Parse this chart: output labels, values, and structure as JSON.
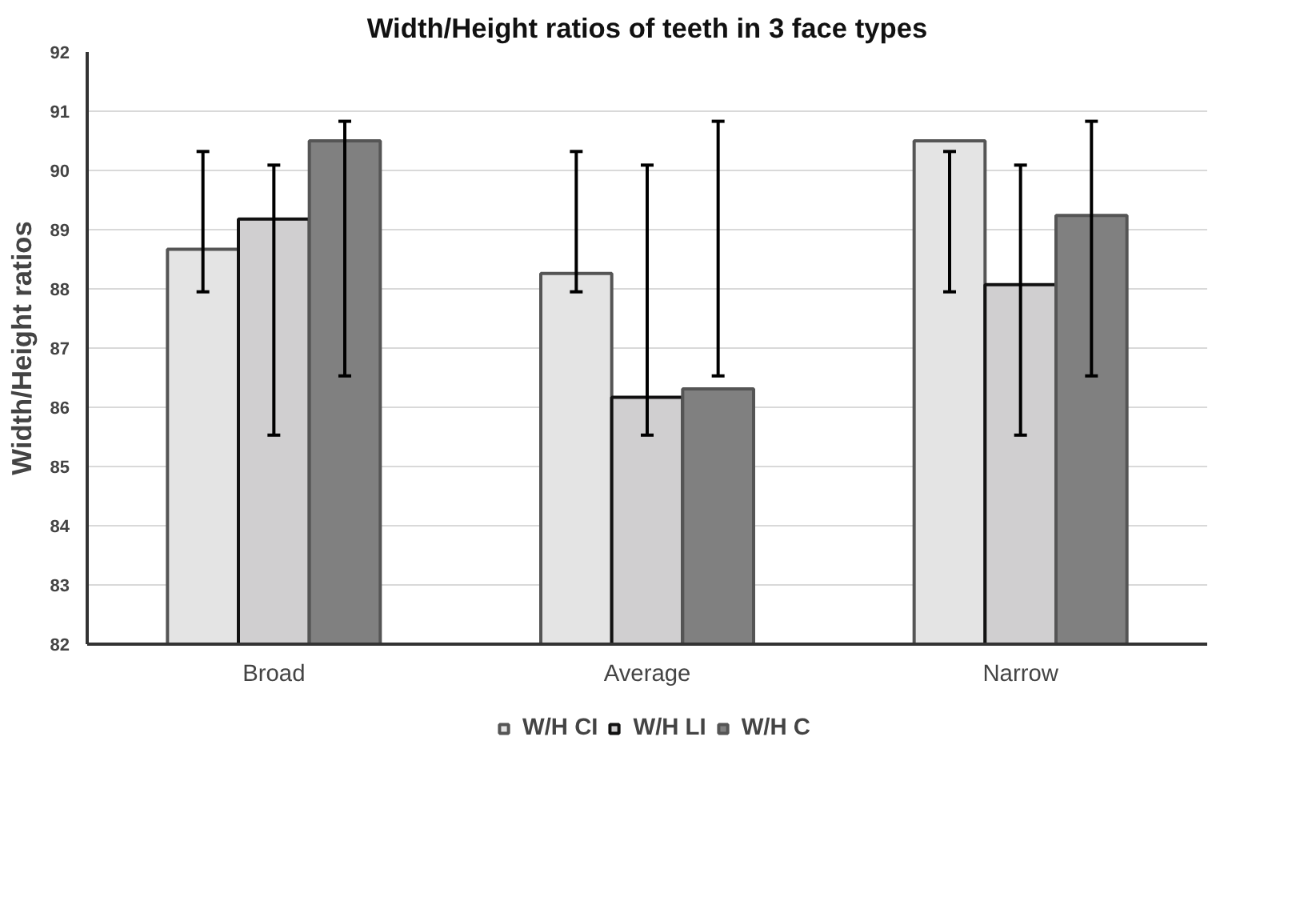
{
  "chart_data": {
    "type": "bar",
    "title": "Width/Height ratios of teeth in 3 face types",
    "ylabel": "Width/Height ratios",
    "categories": [
      "Broad",
      "Average",
      "Narrow"
    ],
    "series": [
      {
        "name": "W/H CI",
        "color": "#e4e4e4",
        "values": [
          88.67,
          88.26,
          90.5
        ],
        "errors": [
          [
            87.95,
            90.32
          ],
          [
            87.95,
            90.32
          ],
          [
            87.95,
            90.32
          ]
        ]
      },
      {
        "name": "W/H LI",
        "color": "#d0cfd0",
        "values": [
          89.18,
          86.17,
          88.07
        ],
        "errors": [
          [
            85.53,
            90.09
          ],
          [
            85.53,
            90.09
          ],
          [
            85.53,
            90.09
          ]
        ]
      },
      {
        "name": "W/H C",
        "color": "#808080",
        "values": [
          90.5,
          86.31,
          89.24
        ],
        "errors": [
          [
            86.53,
            90.83
          ],
          [
            86.53,
            90.83
          ],
          [
            86.53,
            90.83
          ]
        ]
      }
    ],
    "ylim": [
      82,
      92
    ],
    "yticks": [
      82,
      83,
      84,
      85,
      86,
      87,
      88,
      89,
      90,
      91,
      92
    ],
    "grid": "y",
    "legend": "bottom"
  }
}
